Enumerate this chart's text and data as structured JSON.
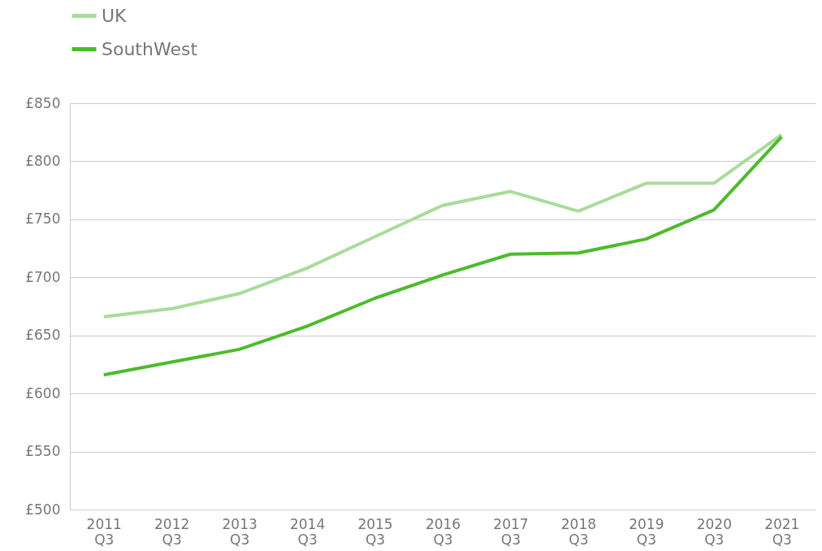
{
  "chart_data": {
    "type": "line",
    "categories": [
      "2011 Q3",
      "2012 Q3",
      "2013 Q3",
      "2014 Q3",
      "2015 Q3",
      "2016 Q3",
      "2017 Q3",
      "2018 Q3",
      "2019 Q3",
      "2020 Q3",
      "2021 Q3"
    ],
    "series": [
      {
        "name": "UK",
        "color": "#a9dc9a",
        "values": [
          666,
          673,
          686,
          708,
          735,
          762,
          774,
          757,
          781,
          781,
          823
        ]
      },
      {
        "name": "SouthWest",
        "color": "#4cbb2c",
        "values": [
          616,
          627,
          638,
          658,
          682,
          702,
          720,
          721,
          733,
          758,
          821
        ]
      }
    ],
    "ylim": [
      500,
      850
    ],
    "yticks": [
      {
        "value": 500,
        "label": "£500"
      },
      {
        "value": 550,
        "label": "£550"
      },
      {
        "value": 600,
        "label": "£600"
      },
      {
        "value": 650,
        "label": "£650"
      },
      {
        "value": 700,
        "label": "£700"
      },
      {
        "value": 750,
        "label": "£750"
      },
      {
        "value": 800,
        "label": "£800"
      },
      {
        "value": 850,
        "label": "£850"
      }
    ],
    "grid": "y",
    "legend": "top left",
    "marker": "none",
    "line_style": "solid"
  }
}
